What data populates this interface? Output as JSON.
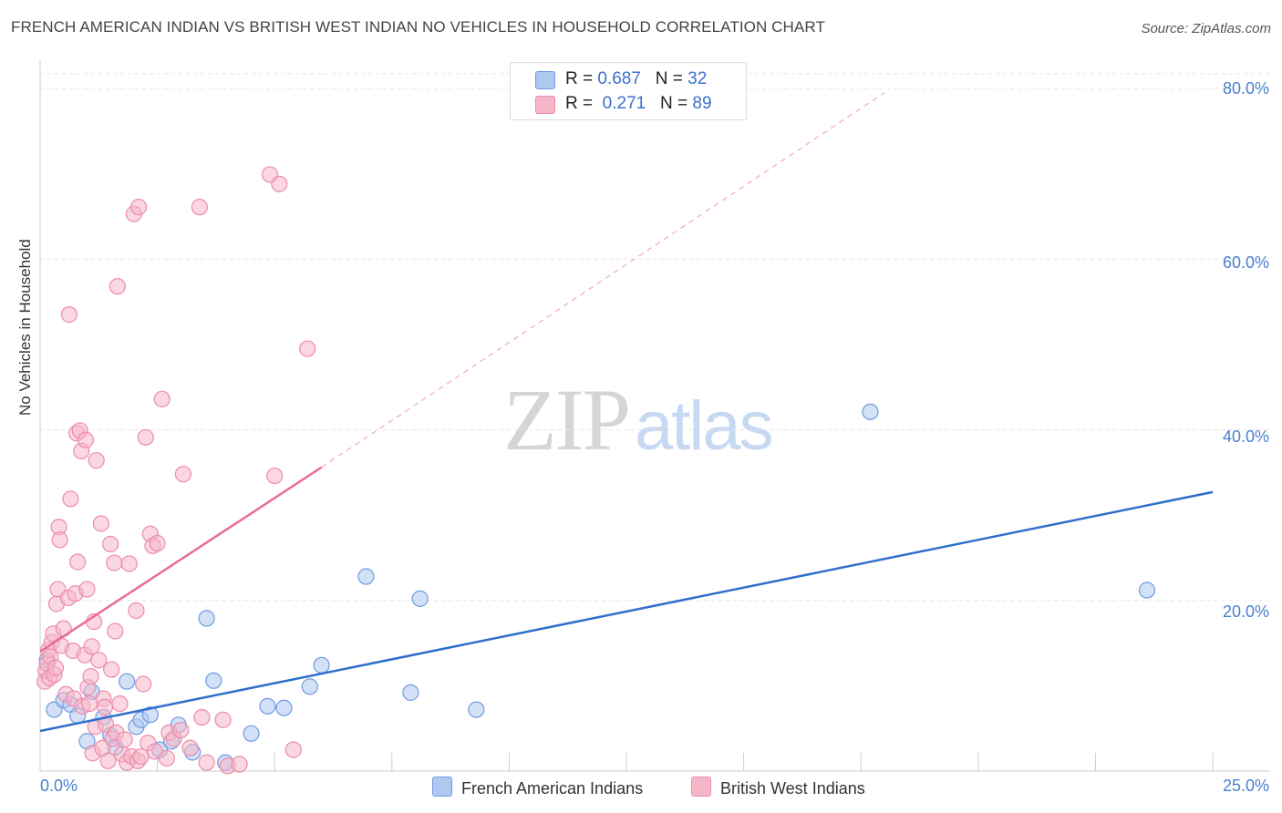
{
  "title": "FRENCH AMERICAN INDIAN VS BRITISH WEST INDIAN NO VEHICLES IN HOUSEHOLD CORRELATION CHART",
  "source": "Source: ZipAtlas.com",
  "watermark": {
    "zip": "ZIP",
    "atlas": "atlas"
  },
  "legend_top": [
    {
      "r_label": "R = ",
      "r_value": "0.687",
      "n_label": "N = ",
      "n_value": "32",
      "color": "#aec8f0"
    },
    {
      "r_label": "R = ",
      "r_value": "0.271",
      "n_label": "N = ",
      "n_value": "89",
      "color": "#f5b6c8"
    }
  ],
  "legend_bottom": [
    {
      "label": "French American Indians",
      "color": "#aec8f0"
    },
    {
      "label": "British West Indians",
      "color": "#f5b6c8"
    }
  ],
  "chart_data": {
    "type": "scatter",
    "title": "FRENCH AMERICAN INDIAN VS BRITISH WEST INDIAN NO VEHICLES IN HOUSEHOLD CORRELATION CHART",
    "xlabel": "",
    "ylabel": "No Vehicles in Household",
    "xlim": [
      0,
      25
    ],
    "ylim": [
      0,
      80
    ],
    "x_tick_labels": [
      "0.0%",
      "25.0%"
    ],
    "y_ticks": [
      20,
      40,
      60,
      80
    ],
    "y_tick_labels": [
      "20.0%",
      "40.0%",
      "60.0%",
      "80.0%"
    ],
    "grid": true,
    "legend_position": "top-center",
    "series": [
      {
        "name": "French American Indians",
        "color": "#aec8f0",
        "edge": "#6f9be0",
        "trend": {
          "x": [
            0,
            25
          ],
          "y": [
            4.7,
            32.7
          ],
          "color": "#2f6fcc"
        },
        "points": [
          {
            "x": 0.3,
            "y": 7.2
          },
          {
            "x": 0.5,
            "y": 8.3
          },
          {
            "x": 0.65,
            "y": 7.8
          },
          {
            "x": 0.8,
            "y": 6.5
          },
          {
            "x": 1.0,
            "y": 3.5
          },
          {
            "x": 1.1,
            "y": 9.3
          },
          {
            "x": 1.35,
            "y": 6.3
          },
          {
            "x": 1.5,
            "y": 4.2
          },
          {
            "x": 1.6,
            "y": 2.8
          },
          {
            "x": 1.85,
            "y": 10.5
          },
          {
            "x": 2.05,
            "y": 5.2
          },
          {
            "x": 2.15,
            "y": 6.0
          },
          {
            "x": 2.35,
            "y": 6.6
          },
          {
            "x": 2.55,
            "y": 2.5
          },
          {
            "x": 2.8,
            "y": 3.5
          },
          {
            "x": 2.95,
            "y": 5.4
          },
          {
            "x": 3.25,
            "y": 2.2
          },
          {
            "x": 3.55,
            "y": 17.9
          },
          {
            "x": 3.7,
            "y": 10.6
          },
          {
            "x": 3.95,
            "y": 1.0
          },
          {
            "x": 4.5,
            "y": 4.4
          },
          {
            "x": 4.85,
            "y": 7.6
          },
          {
            "x": 5.2,
            "y": 7.4
          },
          {
            "x": 5.75,
            "y": 9.9
          },
          {
            "x": 6.0,
            "y": 12.4
          },
          {
            "x": 6.95,
            "y": 22.8
          },
          {
            "x": 7.9,
            "y": 9.2
          },
          {
            "x": 8.1,
            "y": 20.2
          },
          {
            "x": 9.3,
            "y": 7.2
          },
          {
            "x": 17.7,
            "y": 42.1
          },
          {
            "x": 23.6,
            "y": 21.2
          },
          {
            "x": 0.15,
            "y": 13.0
          }
        ]
      },
      {
        "name": "British West Indians",
        "color": "#f5b6c8",
        "edge": "#ec8cab",
        "trend": {
          "x": [
            0,
            6.0
          ],
          "y": [
            14.0,
            35.6
          ],
          "color": "#e86d98"
        },
        "trend_extension": {
          "x": [
            6.0,
            18.0
          ],
          "y": [
            35.6,
            79.5
          ]
        },
        "points": [
          {
            "x": 0.1,
            "y": 10.5
          },
          {
            "x": 0.12,
            "y": 11.8
          },
          {
            "x": 0.15,
            "y": 12.6
          },
          {
            "x": 0.18,
            "y": 14.2
          },
          {
            "x": 0.2,
            "y": 10.9
          },
          {
            "x": 0.25,
            "y": 15.1
          },
          {
            "x": 0.28,
            "y": 16.1
          },
          {
            "x": 0.3,
            "y": 11.3
          },
          {
            "x": 0.35,
            "y": 19.6
          },
          {
            "x": 0.38,
            "y": 21.3
          },
          {
            "x": 0.4,
            "y": 28.6
          },
          {
            "x": 0.42,
            "y": 27.1
          },
          {
            "x": 0.45,
            "y": 14.7
          },
          {
            "x": 0.5,
            "y": 16.7
          },
          {
            "x": 0.55,
            "y": 9.0
          },
          {
            "x": 0.6,
            "y": 20.3
          },
          {
            "x": 0.62,
            "y": 53.5
          },
          {
            "x": 0.65,
            "y": 31.9
          },
          {
            "x": 0.7,
            "y": 14.1
          },
          {
            "x": 0.72,
            "y": 8.5
          },
          {
            "x": 0.75,
            "y": 20.8
          },
          {
            "x": 0.78,
            "y": 39.6
          },
          {
            "x": 0.8,
            "y": 24.5
          },
          {
            "x": 0.85,
            "y": 39.9
          },
          {
            "x": 0.88,
            "y": 37.5
          },
          {
            "x": 0.9,
            "y": 7.6
          },
          {
            "x": 0.95,
            "y": 13.6
          },
          {
            "x": 0.97,
            "y": 38.8
          },
          {
            "x": 1.0,
            "y": 21.3
          },
          {
            "x": 1.02,
            "y": 9.8
          },
          {
            "x": 1.05,
            "y": 7.9
          },
          {
            "x": 1.08,
            "y": 11.1
          },
          {
            "x": 1.1,
            "y": 14.6
          },
          {
            "x": 1.12,
            "y": 2.1
          },
          {
            "x": 1.15,
            "y": 17.5
          },
          {
            "x": 1.18,
            "y": 5.2
          },
          {
            "x": 1.2,
            "y": 36.4
          },
          {
            "x": 1.25,
            "y": 13.0
          },
          {
            "x": 1.3,
            "y": 29.0
          },
          {
            "x": 1.33,
            "y": 2.7
          },
          {
            "x": 1.35,
            "y": 8.5
          },
          {
            "x": 1.38,
            "y": 7.5
          },
          {
            "x": 1.4,
            "y": 5.5
          },
          {
            "x": 1.45,
            "y": 1.2
          },
          {
            "x": 1.5,
            "y": 26.6
          },
          {
            "x": 1.52,
            "y": 11.9
          },
          {
            "x": 1.55,
            "y": 3.8
          },
          {
            "x": 1.58,
            "y": 24.4
          },
          {
            "x": 1.6,
            "y": 16.4
          },
          {
            "x": 1.62,
            "y": 4.5
          },
          {
            "x": 1.65,
            "y": 56.8
          },
          {
            "x": 1.7,
            "y": 7.9
          },
          {
            "x": 1.75,
            "y": 2.0
          },
          {
            "x": 1.8,
            "y": 3.7
          },
          {
            "x": 1.85,
            "y": 1.0
          },
          {
            "x": 1.9,
            "y": 24.3
          },
          {
            "x": 1.95,
            "y": 1.7
          },
          {
            "x": 2.0,
            "y": 65.3
          },
          {
            "x": 2.05,
            "y": 18.8
          },
          {
            "x": 2.08,
            "y": 1.2
          },
          {
            "x": 2.1,
            "y": 66.1
          },
          {
            "x": 2.15,
            "y": 1.7
          },
          {
            "x": 2.2,
            "y": 10.2
          },
          {
            "x": 2.25,
            "y": 39.1
          },
          {
            "x": 2.3,
            "y": 3.3
          },
          {
            "x": 2.35,
            "y": 27.8
          },
          {
            "x": 2.4,
            "y": 26.4
          },
          {
            "x": 2.45,
            "y": 2.3
          },
          {
            "x": 2.5,
            "y": 26.7
          },
          {
            "x": 2.6,
            "y": 43.6
          },
          {
            "x": 2.7,
            "y": 1.5
          },
          {
            "x": 2.75,
            "y": 4.5
          },
          {
            "x": 2.85,
            "y": 3.8
          },
          {
            "x": 3.0,
            "y": 4.8
          },
          {
            "x": 3.05,
            "y": 34.8
          },
          {
            "x": 3.2,
            "y": 2.7
          },
          {
            "x": 3.4,
            "y": 66.1
          },
          {
            "x": 3.45,
            "y": 6.3
          },
          {
            "x": 3.55,
            "y": 1.0
          },
          {
            "x": 3.9,
            "y": 6.0
          },
          {
            "x": 4.0,
            "y": 0.6
          },
          {
            "x": 4.25,
            "y": 0.8
          },
          {
            "x": 4.9,
            "y": 69.9
          },
          {
            "x": 5.0,
            "y": 34.6
          },
          {
            "x": 5.1,
            "y": 68.8
          },
          {
            "x": 5.4,
            "y": 2.5
          },
          {
            "x": 5.7,
            "y": 49.5
          },
          {
            "x": 0.22,
            "y": 13.4
          },
          {
            "x": 0.33,
            "y": 12.1
          }
        ]
      }
    ]
  }
}
